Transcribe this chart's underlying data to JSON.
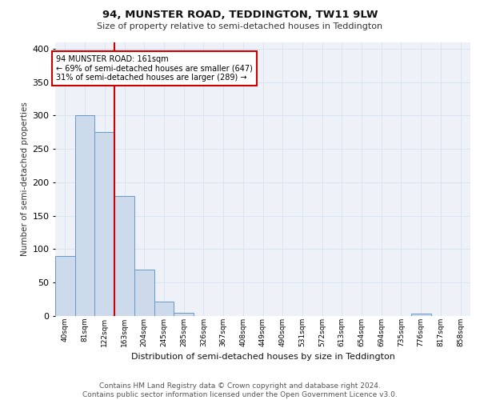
{
  "title_line1": "94, MUNSTER ROAD, TEDDINGTON, TW11 9LW",
  "title_line2": "Size of property relative to semi-detached houses in Teddington",
  "xlabel": "Distribution of semi-detached houses by size in Teddington",
  "ylabel": "Number of semi-detached properties",
  "footer": "Contains HM Land Registry data © Crown copyright and database right 2024.\nContains public sector information licensed under the Open Government Licence v3.0.",
  "bin_labels": [
    "40sqm",
    "81sqm",
    "122sqm",
    "163sqm",
    "204sqm",
    "245sqm",
    "285sqm",
    "326sqm",
    "367sqm",
    "408sqm",
    "449sqm",
    "490sqm",
    "531sqm",
    "572sqm",
    "613sqm",
    "654sqm",
    "694sqm",
    "735sqm",
    "776sqm",
    "817sqm",
    "858sqm"
  ],
  "bar_values": [
    90,
    300,
    275,
    180,
    70,
    21,
    5,
    0,
    0,
    0,
    0,
    0,
    0,
    0,
    0,
    0,
    0,
    0,
    3,
    0,
    0
  ],
  "bar_color": "#cddaeb",
  "bar_edge_color": "#6699cc",
  "vline_x": 3.0,
  "vline_color": "#cc0000",
  "annotation_text": "94 MUNSTER ROAD: 161sqm\n← 69% of semi-detached houses are smaller (647)\n31% of semi-detached houses are larger (289) →",
  "annotation_box_facecolor": "white",
  "annotation_box_edgecolor": "#cc0000",
  "ylim": [
    0,
    410
  ],
  "yticks": [
    0,
    50,
    100,
    150,
    200,
    250,
    300,
    350,
    400
  ],
  "grid_color": "#d8e4f0",
  "bg_color": "#eef2f8",
  "title1_fontsize": 9.5,
  "title2_fontsize": 8,
  "ylabel_fontsize": 7.5,
  "xlabel_fontsize": 8,
  "tick_fontsize": 6.5,
  "footer_fontsize": 6.5
}
